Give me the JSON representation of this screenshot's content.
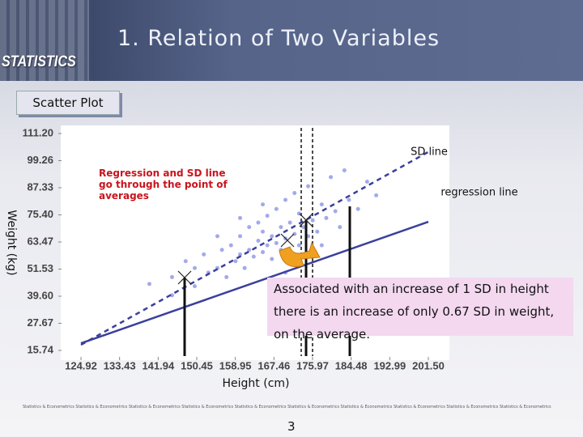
{
  "header": {
    "title": "1. Relation of Two Variables",
    "brand": "STATISTICS"
  },
  "section": "Scatter Plot",
  "chart_data": {
    "type": "scatter",
    "xlabel": "Height (cm)",
    "ylabel": "Weight (kg)",
    "color": "#a3aaea",
    "x": [
      140,
      145,
      148,
      150,
      152,
      153,
      155,
      156,
      157,
      158,
      159,
      160,
      160,
      161,
      162,
      162,
      163,
      164,
      164,
      165,
      165,
      166,
      166,
      167,
      167,
      168,
      168,
      169,
      169,
      170,
      170,
      171,
      171,
      172,
      172,
      173,
      173,
      174,
      175,
      175,
      176,
      177,
      178,
      179,
      180,
      181,
      182,
      184,
      186,
      188,
      190,
      145,
      150,
      155,
      160,
      178,
      183,
      170,
      165,
      175
    ],
    "y": [
      45,
      48,
      55,
      44,
      58,
      50,
      52,
      60,
      48,
      62,
      55,
      58,
      66,
      52,
      60,
      70,
      57,
      64,
      72,
      59,
      68,
      62,
      75,
      56,
      66,
      63,
      78,
      60,
      70,
      65,
      82,
      58,
      72,
      67,
      85,
      62,
      76,
      70,
      66,
      88,
      73,
      68,
      80,
      74,
      92,
      77,
      70,
      82,
      78,
      90,
      84,
      40,
      52,
      66,
      74,
      62,
      95,
      50,
      80,
      58
    ],
    "lines": [
      {
        "name": "regression line",
        "color": "#3b3f9c",
        "dashed": false,
        "x": [
          124.92,
          201.5
        ],
        "y": [
          18.86,
          72.34
        ]
      },
      {
        "name": "SD line",
        "color": "#3b3f9c",
        "dashed": true,
        "x": [
          124.92,
          201.5
        ],
        "y": [
          18.2,
          103.1
        ]
      }
    ],
    "xlim": [
      124.92,
      201.5
    ],
    "ylim": [
      15.74,
      111.2
    ],
    "xticks": [
      124.92,
      133.43,
      141.94,
      150.45,
      158.95,
      167.46,
      175.97,
      184.48,
      192.99,
      {
        "value": 201.5,
        "label": "201.50"
      }
    ],
    "yticks": [
      {
        "value": 111.2,
        "label": "111.20"
      },
      99.26,
      87.33,
      {
        "value": 75.4,
        "label": "75.40"
      },
      63.47,
      51.53,
      {
        "value": 39.6,
        "label": "39.60"
      },
      27.67,
      15.74
    ],
    "annotations": [
      "Regression and SD line go through the point of averages",
      "Associated with an increase of 1 SD in height there is an increase of only 0.67 SD in weight, on the average."
    ]
  },
  "footer": "Statistics & Econometrics Statistics & Econometrics Statistics & Econometrics Statistics & Econometrics Statistics & Econometrics Statistics & Econometrics Statistics & Econometrics Statistics & Econometrics Statistics & Econometrics Statistics & Econometrics",
  "page": "3"
}
